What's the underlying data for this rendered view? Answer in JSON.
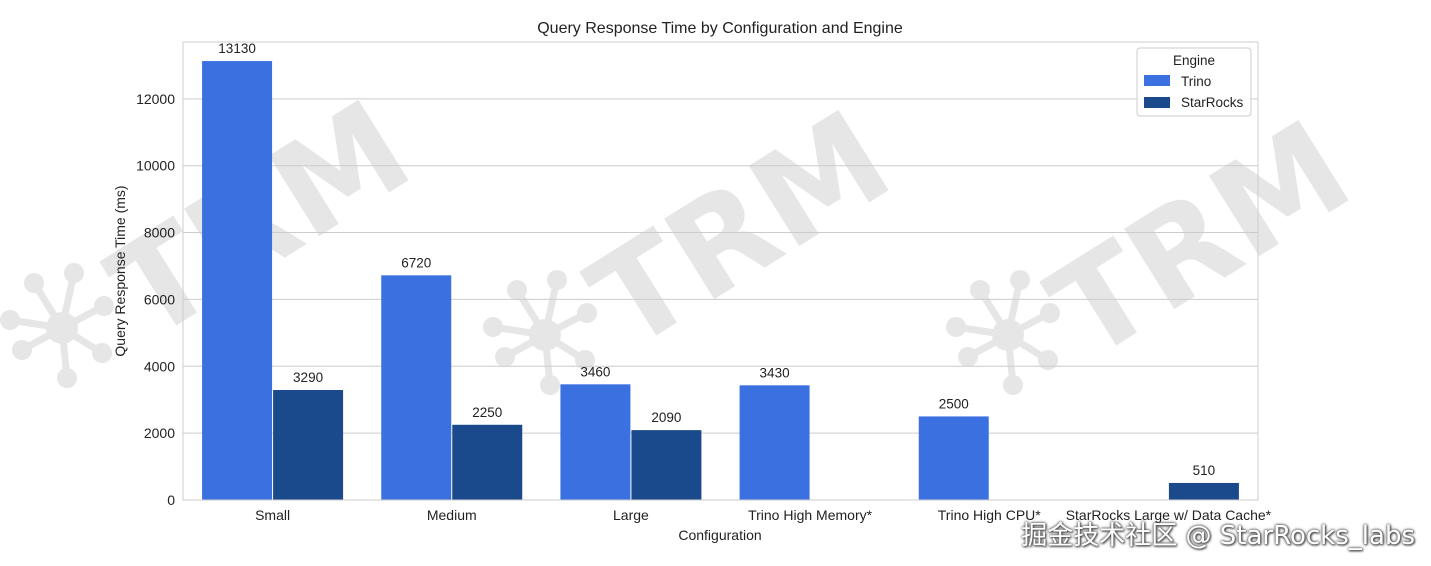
{
  "watermark": {
    "text": "TRM",
    "footer": "掘金技术社区 @ StarRocks_labs"
  },
  "chart_data": {
    "type": "bar",
    "title": "Query Response Time by Configuration and Engine",
    "xlabel": "Configuration",
    "ylabel": "Query Response Time (ms)",
    "ylim": [
      0,
      13700
    ],
    "yticks": [
      0,
      2000,
      4000,
      6000,
      8000,
      10000,
      12000
    ],
    "grid": true,
    "legend": {
      "title": "Engine",
      "placement": "top-right"
    },
    "categories": [
      "Small",
      "Medium",
      "Large",
      "Trino High Memory*",
      "Trino High CPU*",
      "StarRocks Large w/ Data Cache*"
    ],
    "series": [
      {
        "name": "Trino",
        "color": "#3a70e0",
        "values": [
          13130,
          6720,
          3460,
          3430,
          2500,
          null
        ]
      },
      {
        "name": "StarRocks",
        "color": "#1b4a8c",
        "values": [
          3290,
          2250,
          2090,
          null,
          null,
          510
        ]
      }
    ]
  }
}
